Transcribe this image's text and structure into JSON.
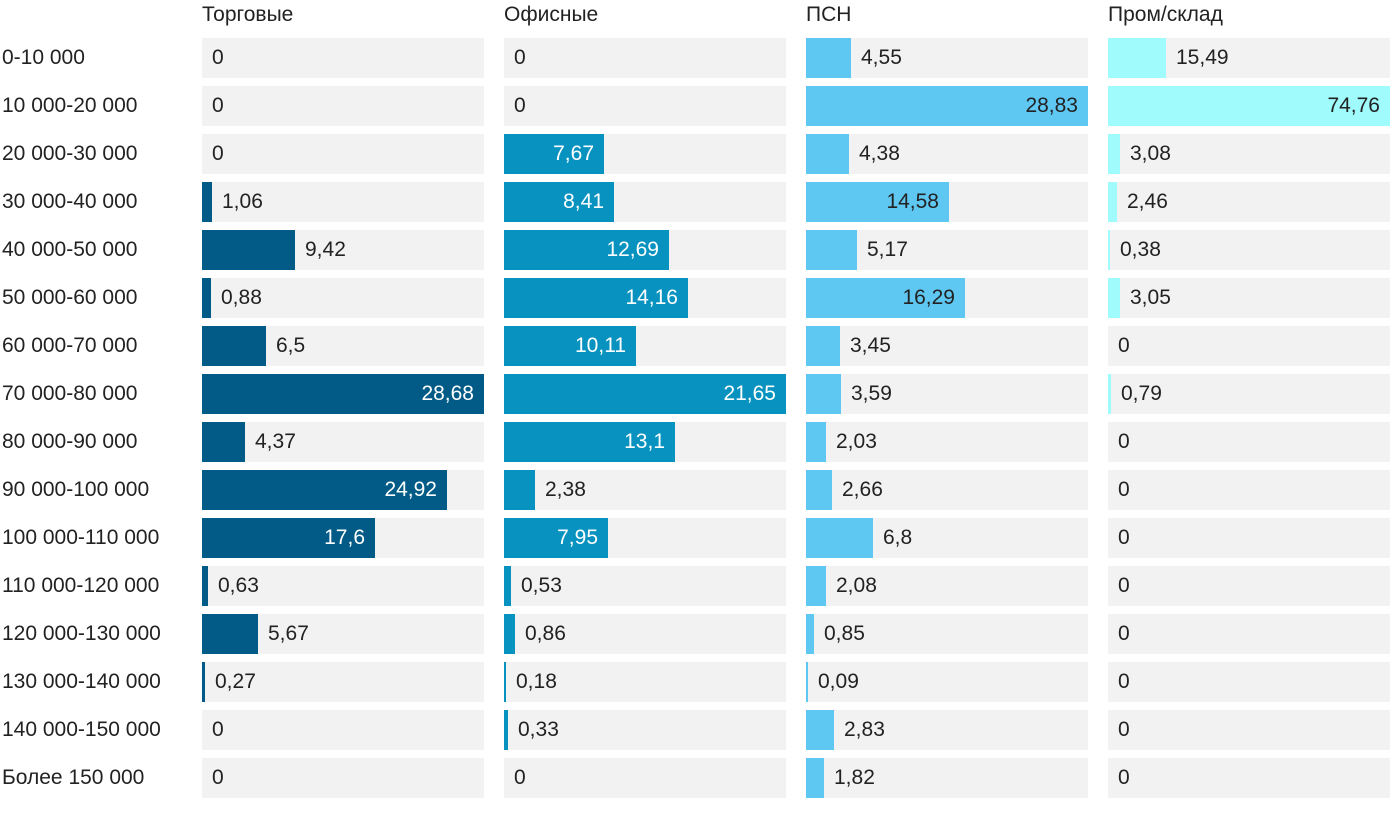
{
  "chart_data": {
    "type": "bar",
    "orientation": "horizontal",
    "layout": "small-multiples",
    "categories": [
      "0-10 000",
      "10 000-20 000",
      "20 000-30 000",
      "30 000-40 000",
      "40 000-50 000",
      "50 000-60 000",
      "60 000-70 000",
      "70 000-80 000",
      "80 000-90 000",
      "90 000-100 000",
      "100 000-110 000",
      "110 000-120 000",
      "120 000-130 000",
      "130 000-140 000",
      "140 000-150 000",
      "Более 150 000"
    ],
    "series": [
      {
        "name": "Торговые",
        "color": "#015b86",
        "max": 28.68,
        "values": [
          0,
          0,
          0,
          1.06,
          9.42,
          0.88,
          6.5,
          28.68,
          4.37,
          24.92,
          17.6,
          0.63,
          5.67,
          0.27,
          0,
          0
        ],
        "labels": [
          "0",
          "0",
          "0",
          "1,06",
          "9,42",
          "0,88",
          "6,5",
          "28,68",
          "4,37",
          "24,92",
          "17,6",
          "0,63",
          "5,67",
          "0,27",
          "0",
          "0"
        ]
      },
      {
        "name": "Офисные",
        "color": "#0792c0",
        "max": 21.65,
        "values": [
          0,
          0,
          7.67,
          8.41,
          12.69,
          14.16,
          10.11,
          21.65,
          13.1,
          2.38,
          7.95,
          0.53,
          0.86,
          0.18,
          0.33,
          0
        ],
        "labels": [
          "0",
          "0",
          "7,67",
          "8,41",
          "12,69",
          "14,16",
          "10,11",
          "21,65",
          "13,1",
          "2,38",
          "7,95",
          "0,53",
          "0,86",
          "0,18",
          "0,33",
          "0"
        ]
      },
      {
        "name": "ПСН",
        "color": "#5ec8f3",
        "max": 28.83,
        "values": [
          4.55,
          28.83,
          4.38,
          14.58,
          5.17,
          16.29,
          3.45,
          3.59,
          2.03,
          2.66,
          6.8,
          2.08,
          0.85,
          0.09,
          2.83,
          1.82
        ],
        "labels": [
          "4,55",
          "28,83",
          "4,38",
          "14,58",
          "5,17",
          "16,29",
          "3,45",
          "3,59",
          "2,03",
          "2,66",
          "6,8",
          "2,08",
          "0,85",
          "0,09",
          "2,83",
          "1,82"
        ]
      },
      {
        "name": "Пром/склад",
        "color": "#a0fbfc",
        "max": 74.76,
        "values": [
          15.49,
          74.76,
          3.08,
          2.46,
          0.38,
          3.05,
          0,
          0.79,
          0,
          0,
          0,
          0,
          0,
          0,
          0,
          0
        ],
        "labels": [
          "15,49",
          "74,76",
          "3,08",
          "2,46",
          "0,38",
          "3,05",
          "0",
          "0,79",
          "0",
          "0",
          "0",
          "0",
          "0",
          "0",
          "0",
          "0"
        ]
      }
    ],
    "title": "",
    "xlabel": "",
    "ylabel": ""
  }
}
